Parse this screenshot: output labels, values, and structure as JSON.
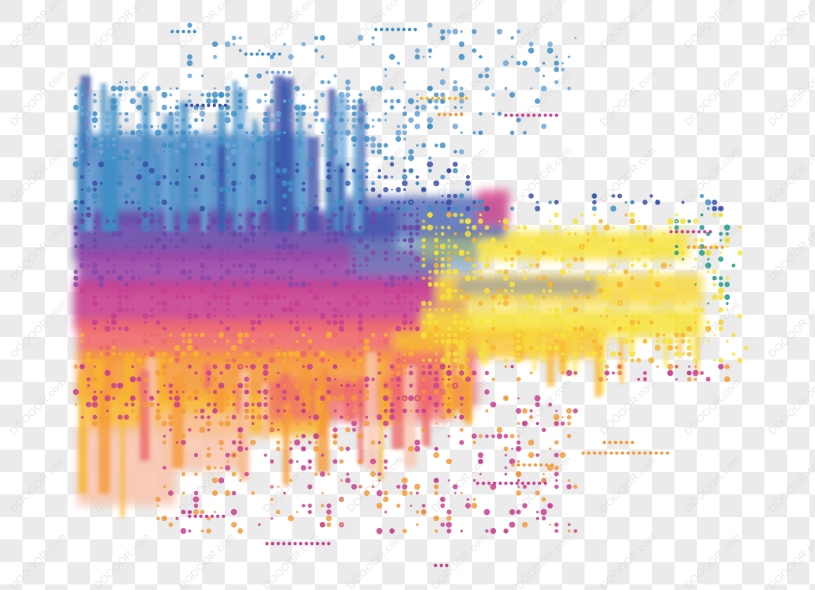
{
  "image": {
    "description_tag": "abstract-watercolor-halftone-splash",
    "watermark_text": "DOOOOR.com",
    "colors": {
      "checker_light": "#ffffff",
      "checker_dark": "#e9e9e9",
      "blue": "#3f8fc6",
      "light_blue": "#6fa7d8",
      "navy": "#3b4fa8",
      "purple": "#6a49a8",
      "violet": "#8b48a8",
      "magenta": "#c8408f",
      "pink": "#e4558a",
      "coral": "#ef6a6a",
      "orange": "#f59a3a",
      "amber": "#f8b52c",
      "yellow": "#f7e33b",
      "peach": "#f7c7b0",
      "teal": "#1f9a8a",
      "gray": "#9a9aa8"
    }
  }
}
